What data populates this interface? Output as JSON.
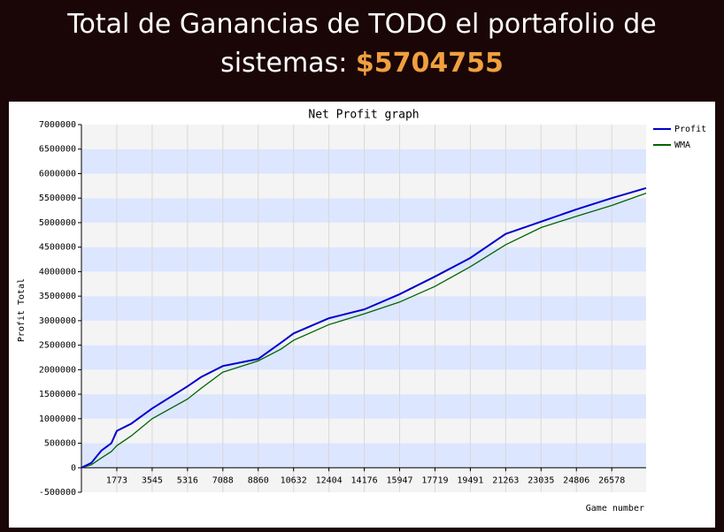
{
  "header": {
    "title": "Total de Ganancias de TODO el portafolio de sistemas:",
    "amount": "$5704755"
  },
  "chart_data": {
    "type": "line",
    "title": "Net Profit graph",
    "x_label": "Game number",
    "y_label": "Profit Total",
    "x": [
      0,
      500,
      1000,
      1500,
      1773,
      2500,
      3545,
      5316,
      6000,
      7088,
      8860,
      10000,
      10632,
      12404,
      14176,
      15947,
      17719,
      19491,
      21263,
      23035,
      24806,
      26578,
      28300
    ],
    "series": [
      {
        "name": "Profit",
        "color": "#0000cc",
        "values": [
          0,
          100000,
          350000,
          500000,
          750000,
          900000,
          1210000,
          1660000,
          1850000,
          2075000,
          2220000,
          2550000,
          2740000,
          3050000,
          3230000,
          3540000,
          3900000,
          4280000,
          4770000,
          5020000,
          5270000,
          5500000,
          5704755
        ]
      },
      {
        "name": "WMA",
        "color": "#006600",
        "values": [
          0,
          60000,
          200000,
          330000,
          450000,
          650000,
          1000000,
          1400000,
          1620000,
          1950000,
          2180000,
          2420000,
          2600000,
          2920000,
          3140000,
          3380000,
          3700000,
          4100000,
          4550000,
          4900000,
          5130000,
          5350000,
          5600000
        ]
      }
    ],
    "xlim": [
      0,
      28300
    ],
    "ylim": [
      -500000,
      7000000
    ],
    "xticks": [
      1773,
      3545,
      5316,
      7088,
      8860,
      10632,
      12404,
      14176,
      15947,
      17719,
      19491,
      21263,
      23035,
      24806,
      26578
    ],
    "yticks": [
      -500000,
      0,
      500000,
      1000000,
      1500000,
      2000000,
      2500000,
      3000000,
      3500000,
      4000000,
      4500000,
      5000000,
      5500000,
      6000000,
      6500000,
      7000000
    ],
    "band_colors": [
      "#f4f4f4",
      "#dde6ff"
    ],
    "grid": true,
    "legend": "top-right"
  }
}
